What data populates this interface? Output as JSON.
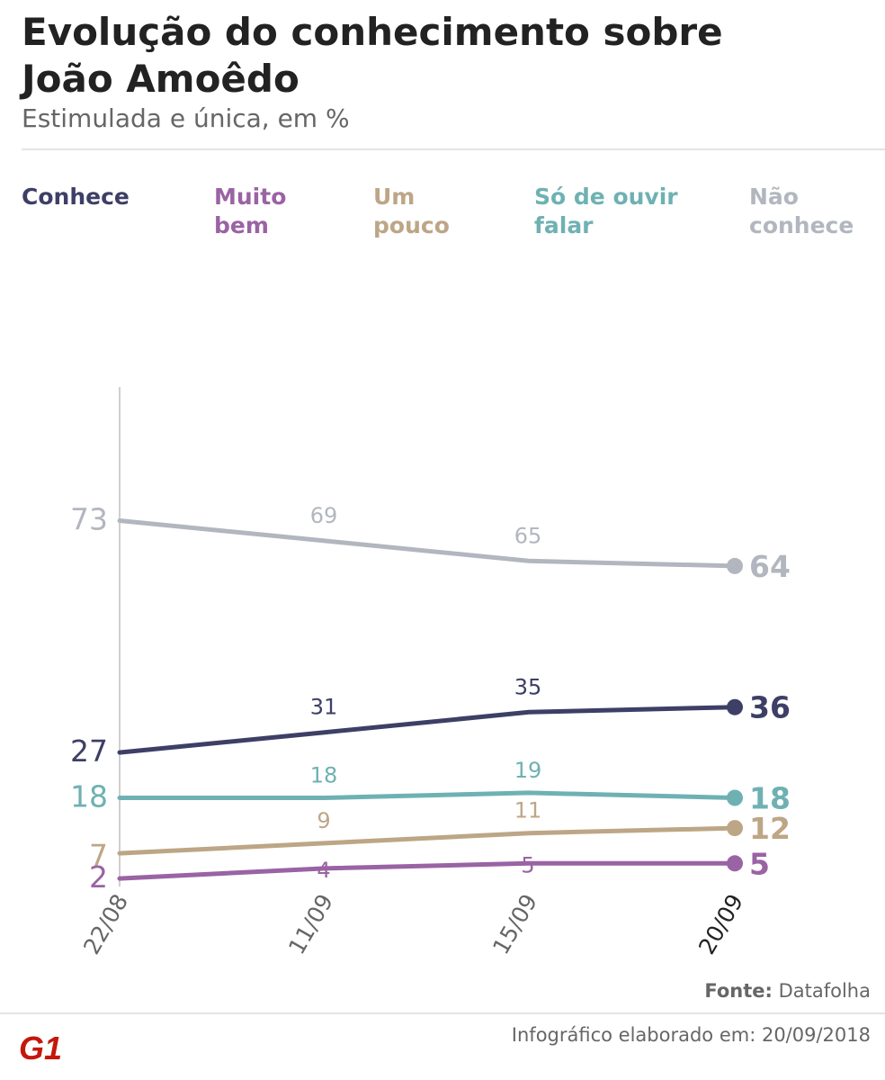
{
  "title": "Evolução do conhecimento sobre João Amoêdo",
  "subtitle": "Estimulada e única, em %",
  "source_label": "Fonte:",
  "source_value": "Datafolha",
  "credit": "Infográfico elaborado em: 20/09/2018",
  "logo_text": "G1",
  "legend": [
    {
      "label": "Conhece",
      "color": "#3d3f66"
    },
    {
      "label": "Muito bem",
      "color": "#9a63a4"
    },
    {
      "label": "Um pouco",
      "color": "#bda686"
    },
    {
      "label": "Só de ouvir falar",
      "color": "#6fb1b3"
    },
    {
      "label": "Não conhece",
      "color": "#b2b6bf"
    }
  ],
  "chart_data": {
    "type": "line",
    "title": "Evolução do conhecimento sobre João Amoêdo",
    "subtitle": "Estimulada e única, em %",
    "categories": [
      "22/08",
      "11/09",
      "15/09",
      "20/09"
    ],
    "series": [
      {
        "name": "Não conhece",
        "color": "#b2b6bf",
        "values": [
          73,
          69,
          65,
          64
        ]
      },
      {
        "name": "Conhece",
        "color": "#3d3f66",
        "values": [
          27,
          31,
          35,
          36
        ]
      },
      {
        "name": "Só de ouvir falar",
        "color": "#6fb1b3",
        "values": [
          18,
          18,
          19,
          18
        ]
      },
      {
        "name": "Um pouco",
        "color": "#bda686",
        "values": [
          7,
          9,
          11,
          12
        ]
      },
      {
        "name": "Muito bem",
        "color": "#9a63a4",
        "values": [
          2,
          4,
          5,
          5
        ]
      }
    ],
    "ylim": [
      0,
      100
    ],
    "grid": false
  }
}
